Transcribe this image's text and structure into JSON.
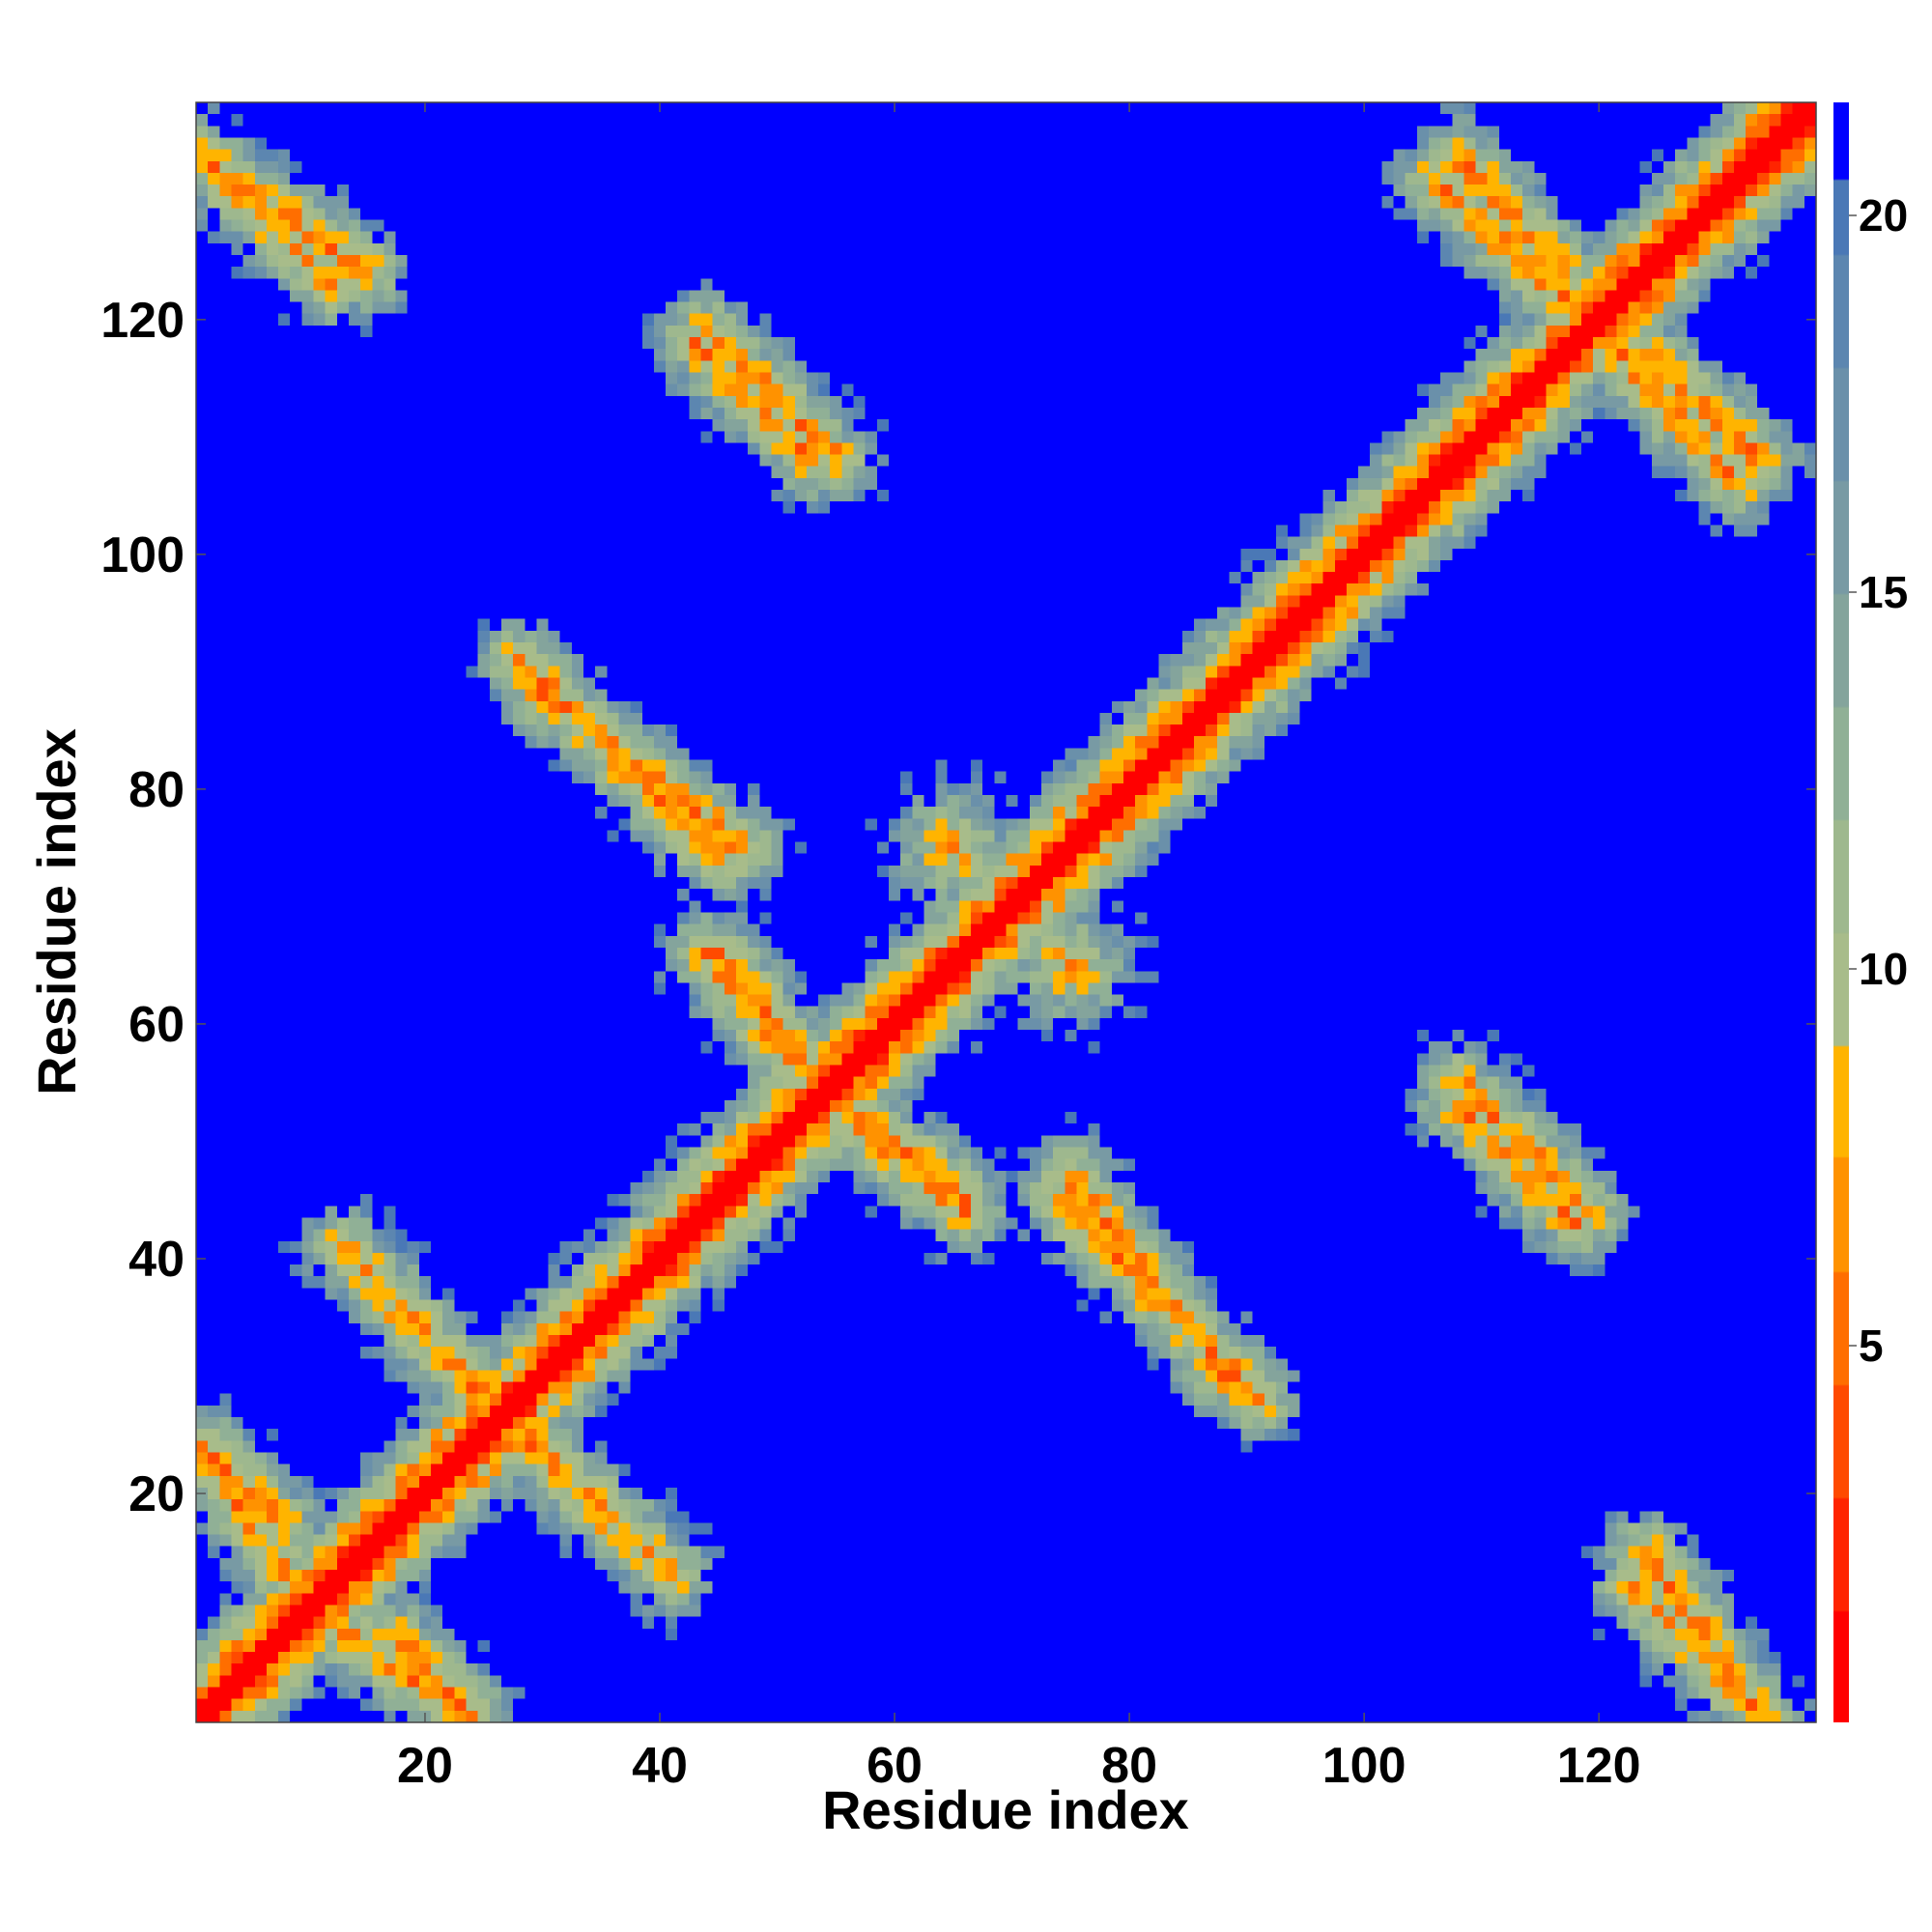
{
  "chart_data": {
    "type": "heatmap",
    "title": "",
    "xlabel": "Residue index",
    "ylabel": "Residue index",
    "n_residues": 138,
    "xlim": [
      1,
      138
    ],
    "ylim": [
      1,
      138
    ],
    "x_ticks": [
      20,
      40,
      60,
      80,
      100,
      120
    ],
    "y_ticks": [
      20,
      40,
      60,
      80,
      100,
      120
    ],
    "colorbar": {
      "ticks": [
        5,
        10,
        15,
        20
      ],
      "range": [
        0,
        21.5
      ],
      "levels": [
        {
          "min": 0,
          "max": 1.5,
          "color": "#ff0000"
        },
        {
          "min": 1.5,
          "max": 3,
          "color": "#ff2400"
        },
        {
          "min": 3,
          "max": 4.5,
          "color": "#ff4a00"
        },
        {
          "min": 4.5,
          "max": 6,
          "color": "#ff6e00"
        },
        {
          "min": 6,
          "max": 7.5,
          "color": "#ff9200"
        },
        {
          "min": 7.5,
          "max": 9,
          "color": "#ffb400"
        },
        {
          "min": 9,
          "max": 10.5,
          "color": "#a8bc8a"
        },
        {
          "min": 10.5,
          "max": 12,
          "color": "#9eb88e"
        },
        {
          "min": 12,
          "max": 13.5,
          "color": "#90b096"
        },
        {
          "min": 13.5,
          "max": 15,
          "color": "#84a49c"
        },
        {
          "min": 15,
          "max": 16.5,
          "color": "#789aa4"
        },
        {
          "min": 16.5,
          "max": 18,
          "color": "#6a90aa"
        },
        {
          "min": 18,
          "max": 19.5,
          "color": "#5c86b0"
        },
        {
          "min": 19.5,
          "max": 20.5,
          "color": "#4a78b6"
        },
        {
          "min": 20.5,
          "max": 21.5,
          "color": "#0000ff"
        }
      ]
    },
    "description_of_matrix": "Symmetric residue-residue distance map (Angstrom scale) with strong diagonal and off-diagonal helix-like contact stripes",
    "stripes": [
      {
        "start": [
          13,
          41
        ],
        "end": [
          25,
          28
        ]
      },
      {
        "start": [
          28,
          25
        ],
        "end": [
          41,
          13
        ]
      },
      {
        "start": [
          30,
          88
        ],
        "end": [
          47,
          75
        ]
      },
      {
        "start": [
          44,
          66
        ],
        "end": [
          52,
          56
        ]
      },
      {
        "start": [
          44,
          119
        ],
        "end": [
          55,
          108
        ]
      },
      {
        "start": [
          56,
          53
        ],
        "end": [
          66,
          45
        ]
      },
      {
        "start": [
          74,
          45
        ],
        "end": [
          91,
          28
        ]
      },
      {
        "start": [
          108,
          134
        ],
        "end": [
          117,
          124
        ]
      },
      {
        "start": [
          108,
          53
        ],
        "end": [
          118,
          43
        ]
      },
      {
        "start": [
          119,
          120
        ],
        "end": [
          132,
          106
        ]
      },
      {
        "start": [
          123,
          12
        ],
        "end": [
          134,
          1
        ]
      },
      {
        "start": [
          1,
          24
        ],
        "end": [
          8,
          17
        ]
      },
      {
        "start": [
          2,
          133
        ],
        "end": [
          15,
          124
        ]
      },
      {
        "start": [
          13,
          8
        ],
        "end": [
          24,
          1
        ]
      }
    ],
    "contact_patches": [
      {
        "center": [
          95,
          95
        ],
        "radius": 5
      },
      {
        "center": [
          65,
          75
        ],
        "radius": 7
      },
      {
        "center": [
          118,
          118
        ],
        "radius": 4
      },
      {
        "center": [
          27,
          27
        ],
        "radius": 3
      }
    ]
  }
}
